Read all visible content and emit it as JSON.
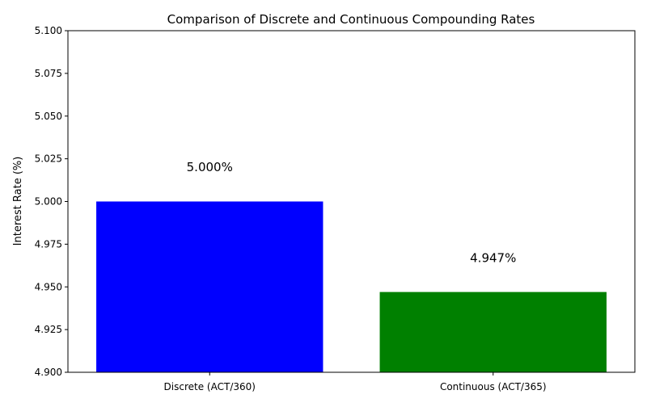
{
  "chart_data": {
    "type": "bar",
    "title": "Comparison of Discrete and Continuous Compounding Rates",
    "xlabel": "",
    "ylabel": "Interest Rate (%)",
    "categories": [
      "Discrete (ACT/360)",
      "Continuous (ACT/365)"
    ],
    "values": [
      5.0,
      4.947
    ],
    "data_labels": [
      "5.000%",
      "4.947%"
    ],
    "colors": [
      "#0000ff",
      "#008000"
    ],
    "ylim": [
      4.9,
      5.1
    ],
    "yticks": [
      4.9,
      4.925,
      4.95,
      4.975,
      5.0,
      5.025,
      5.05,
      5.075,
      5.1
    ],
    "ytick_labels": [
      "4.900",
      "4.925",
      "4.950",
      "4.975",
      "5.000",
      "5.025",
      "5.050",
      "5.075",
      "5.100"
    ],
    "grid": false,
    "legend": "none"
  }
}
